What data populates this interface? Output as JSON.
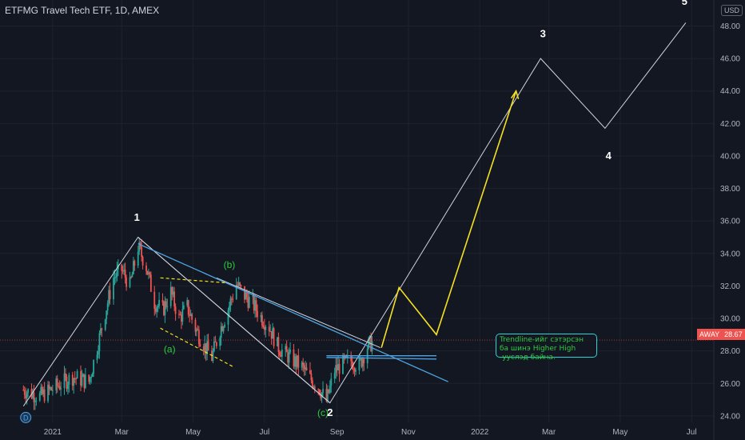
{
  "header": {
    "title": "ETFMG Travel Tech ETF, 1D, AMEX",
    "currency": "USD"
  },
  "price": {
    "ticker": "AWAY",
    "last": "28.67"
  },
  "annotation": {
    "text": "Trendline-ийг сэтэрсэн ба шинэ Higher High -ууслэд байна."
  },
  "colors": {
    "background": "#131722",
    "up": "#26a69a",
    "down": "#ef5350",
    "trend": "#4fa3e0",
    "projection": "#f5e020",
    "waves": "#d1d4dc",
    "sub_waves": "#2ecc40"
  },
  "chart_data": {
    "type": "candlestick",
    "title": "ETFMG Travel Tech ETF, 1D, AMEX",
    "y_ticks": [
      "24.00",
      "26.00",
      "28.00",
      "30.00",
      "32.00",
      "34.00",
      "36.00",
      "38.00",
      "40.00",
      "42.00",
      "44.00",
      "46.00",
      "48.00"
    ],
    "ylim": [
      23.6,
      49.6
    ],
    "x_ticks": [
      "2021",
      "Mar",
      "May",
      "Jul",
      "Sep",
      "Nov",
      "2022",
      "Mar",
      "May",
      "Jul"
    ],
    "x_domain": [
      "2020-11-17",
      "2022-07-20"
    ],
    "series": [
      {
        "kind": "close-path",
        "points": [
          [
            "2020-12-07",
            25.6
          ],
          [
            "2020-12-21",
            25.2
          ],
          [
            "2021-01-04",
            25.8
          ],
          [
            "2021-01-18",
            26.4
          ],
          [
            "2021-02-01",
            26.1
          ],
          [
            "2021-02-08",
            28.2
          ],
          [
            "2021-02-15",
            30.4
          ],
          [
            "2021-02-22",
            32.5
          ],
          [
            "2021-03-01",
            33.0
          ],
          [
            "2021-03-08",
            32.0
          ],
          [
            "2021-03-15",
            34.4
          ],
          [
            "2021-03-22",
            33.2
          ],
          [
            "2021-03-29",
            31.0
          ],
          [
            "2021-04-05",
            30.5
          ],
          [
            "2021-04-12",
            31.6
          ],
          [
            "2021-04-19",
            30.0
          ],
          [
            "2021-04-26",
            30.7
          ],
          [
            "2021-05-03",
            29.4
          ],
          [
            "2021-05-10",
            28.4
          ],
          [
            "2021-05-17",
            27.6
          ],
          [
            "2021-05-24",
            29.3
          ],
          [
            "2021-05-31",
            30.6
          ],
          [
            "2021-06-07",
            32.1
          ],
          [
            "2021-06-14",
            31.4
          ],
          [
            "2021-06-21",
            30.9
          ],
          [
            "2021-06-28",
            30.1
          ],
          [
            "2021-07-05",
            29.5
          ],
          [
            "2021-07-12",
            28.3
          ],
          [
            "2021-07-19",
            27.8
          ],
          [
            "2021-07-26",
            27.4
          ],
          [
            "2021-08-02",
            27.0
          ],
          [
            "2021-08-09",
            26.3
          ],
          [
            "2021-08-16",
            25.8
          ],
          [
            "2021-08-23",
            24.9
          ],
          [
            "2021-08-30",
            26.8
          ],
          [
            "2021-09-06",
            27.2
          ],
          [
            "2021-09-13",
            27.4
          ],
          [
            "2021-09-20",
            27.1
          ],
          [
            "2021-09-27",
            28.3
          ],
          [
            "2021-10-04",
            28.67
          ]
        ]
      }
    ],
    "waves": [
      {
        "label": "D",
        "date": "2020-12-09",
        "price": 23.9
      },
      {
        "label": "1",
        "date": "2021-03-14",
        "price": 36.0
      },
      {
        "label": "(a)",
        "date": "2021-04-11",
        "price": 27.9
      },
      {
        "label": "(b)",
        "date": "2021-06-01",
        "price": 33.1
      },
      {
        "label": "(c)",
        "date": "2021-08-20",
        "price": 24.0
      },
      {
        "label": "2",
        "date": "2021-08-26",
        "price": 24.0
      },
      {
        "label": "3",
        "date": "2022-02-24",
        "price": 47.3
      },
      {
        "label": "4",
        "date": "2022-04-21",
        "price": 39.8
      },
      {
        "label": "5",
        "date": "2022-06-25",
        "price": 49.3
      }
    ],
    "wave_path": [
      [
        "2020-12-07",
        24.6
      ],
      [
        "2021-03-15",
        35.0
      ],
      [
        "2021-08-26",
        24.8
      ],
      [
        "2022-02-22",
        46.0
      ],
      [
        "2022-04-18",
        41.7
      ],
      [
        "2022-06-26",
        48.2
      ]
    ],
    "projection_path": [
      [
        "2021-10-09",
        28.2
      ],
      [
        "2021-10-24",
        31.9
      ],
      [
        "2021-11-25",
        29.0
      ],
      [
        "2022-02-01",
        44.0
      ]
    ],
    "trendlines": [
      {
        "from": [
          "2021-03-15",
          34.6
        ],
        "to": [
          "2021-12-05",
          26.1
        ]
      },
      {
        "from": [
          "2021-08-23",
          27.7
        ],
        "to": [
          "2021-11-25",
          27.7
        ]
      },
      {
        "from": [
          "2021-08-23",
          27.6
        ],
        "to": [
          "2021-11-25",
          27.5
        ]
      }
    ],
    "channels": [
      {
        "from": [
          "2021-03-15",
          35.0
        ],
        "to": [
          "2021-08-26",
          24.8
        ]
      },
      {
        "from": [
          "2021-05-21",
          32.5
        ],
        "to": [
          "2021-10-08",
          28.2
        ]
      }
    ],
    "dashed": [
      {
        "from": [
          "2021-04-03",
          32.5
        ],
        "to": [
          "2021-05-28",
          32.2
        ]
      },
      {
        "from": [
          "2021-04-03",
          29.4
        ],
        "to": [
          "2021-06-05",
          27.0
        ]
      }
    ],
    "last_price": 28.67
  }
}
